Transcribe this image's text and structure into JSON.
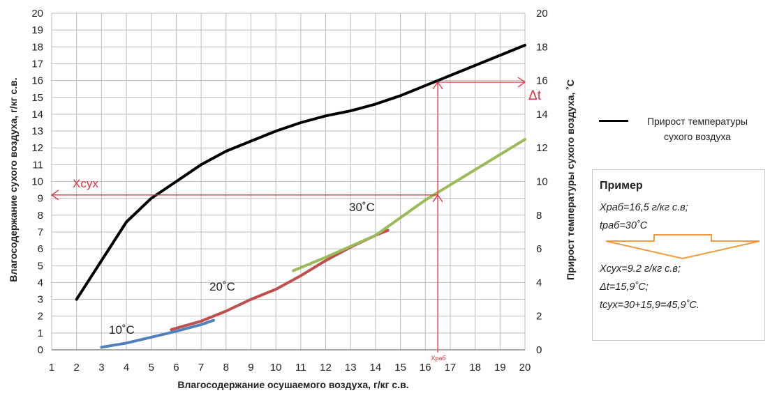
{
  "chart_data": {
    "type": "line",
    "xlabel": "Влагосодержание осушаемого воздуха, г/кг с.в.",
    "ylabel": "Влагосодержание сухого воздуха, г/кг с.в.",
    "y2label": "Прирост температуры сухого воздуха, ˚С",
    "xlim": [
      1,
      20
    ],
    "ylim": [
      0,
      20
    ],
    "y2lim": [
      0,
      20
    ],
    "x_ticks": [
      "1",
      "2",
      "3",
      "4",
      "5",
      "6",
      "7",
      "8",
      "9",
      "10",
      "11",
      "12",
      "13",
      "14",
      "15",
      "16",
      "17",
      "18",
      "19",
      "20"
    ],
    "y_ticks": [
      "0",
      "1",
      "2",
      "3",
      "4",
      "5",
      "6",
      "7",
      "8",
      "9",
      "10",
      "11",
      "12",
      "13",
      "14",
      "15",
      "16",
      "17",
      "18",
      "19",
      "20"
    ],
    "y2_ticks": [
      "0",
      "2",
      "4",
      "6",
      "8",
      "10",
      "12",
      "14",
      "16",
      "18",
      "20"
    ],
    "grid": true,
    "series": [
      {
        "name": "Прирост температуры сухого воздуха",
        "axis": "right",
        "color": "#000000",
        "x": [
          2,
          3,
          4,
          5,
          6,
          7,
          8,
          9,
          10,
          11,
          12,
          13,
          14,
          15,
          16,
          17,
          18,
          19,
          20
        ],
        "y": [
          3.0,
          5.3,
          7.6,
          9.0,
          10.0,
          11.0,
          11.8,
          12.4,
          13.0,
          13.5,
          13.9,
          14.2,
          14.6,
          15.1,
          15.7,
          16.3,
          16.9,
          17.5,
          18.1
        ]
      },
      {
        "name": "10˚С",
        "axis": "left",
        "color": "#4f81bd",
        "x": [
          3,
          4,
          5,
          6,
          7,
          7.5
        ],
        "y": [
          0.15,
          0.4,
          0.75,
          1.1,
          1.5,
          1.75
        ]
      },
      {
        "name": "20˚С",
        "axis": "left",
        "color": "#c0504d",
        "x": [
          5.8,
          7,
          8,
          9,
          10,
          11,
          12,
          13,
          14,
          14.5
        ],
        "y": [
          1.2,
          1.7,
          2.3,
          3.0,
          3.6,
          4.4,
          5.3,
          6.1,
          6.8,
          7.1
        ]
      },
      {
        "name": "30˚С",
        "axis": "left",
        "color": "#9bbb59",
        "x": [
          10.7,
          12,
          14,
          16,
          18,
          20
        ],
        "y": [
          4.7,
          5.5,
          6.8,
          8.9,
          10.7,
          12.5
        ]
      }
    ],
    "annotations": {
      "x_work_label": "Храб",
      "x_dry_label": "Хсух",
      "delta_t_label": "Δt",
      "x_work": 16.5,
      "x_dry": 9.2,
      "delta_t": 15.9
    },
    "legend": {
      "line_label_1": "Прирост температуры",
      "line_label_2": "сухого воздуха",
      "position": "right"
    }
  },
  "example": {
    "title": "Пример",
    "line1": "Храб=16,5 г/кг с.в;",
    "line2": "tраб=30˚С",
    "line3": "Хсух=9.2 г/кг с.в;",
    "line4": "Δt=15,9˚С;",
    "line5": "tсух=30+15,9=45,9˚С.",
    "arrow_color": "#f39a3a"
  }
}
